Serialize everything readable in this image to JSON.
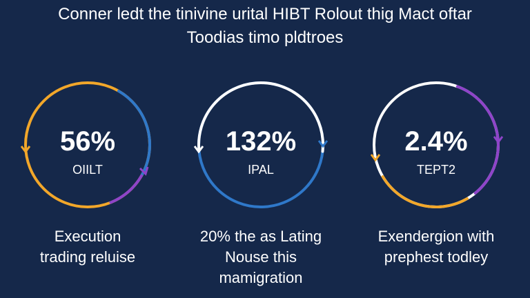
{
  "header": {
    "title_lines": [
      "Conner ledt the tinivine urital HIBT Rolout thig Mact oftar",
      "Toodias timo pldtroes"
    ]
  },
  "cards": [
    {
      "value": "56%",
      "label": "OIILT",
      "caption_lines": [
        "Execution",
        "trading reluise"
      ]
    },
    {
      "value": "132%",
      "label": "IPAL",
      "caption_lines": [
        "20% the as Lating",
        "Nouse this",
        "mamigration"
      ]
    },
    {
      "value": "2.4%",
      "label": "TEPT2",
      "caption_lines": [
        "Exendergion with",
        "prephest todley"
      ]
    }
  ]
}
